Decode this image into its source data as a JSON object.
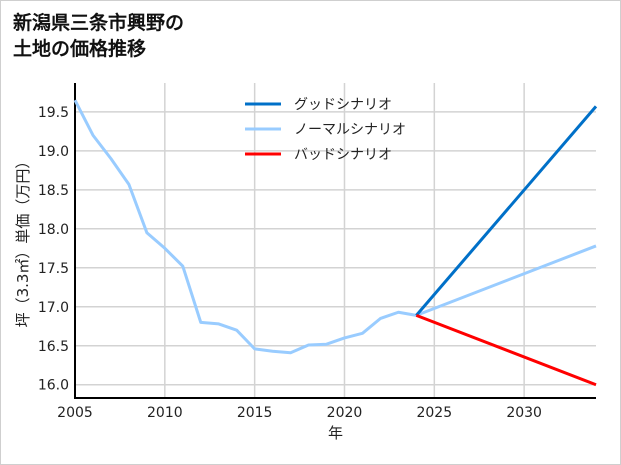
{
  "chart_data": {
    "type": "line",
    "title": [
      "新潟県三条市興野の",
      "土地の価格推移"
    ],
    "xlabel": "年",
    "ylabel": "坪（3.3㎡）単価（万円）",
    "xlim": [
      2005,
      2034
    ],
    "ylim": [
      15.83,
      19.87
    ],
    "xticks": [
      2005,
      2010,
      2015,
      2020,
      2025,
      2030
    ],
    "yticks": [
      16.0,
      16.5,
      17.0,
      17.5,
      18.0,
      18.5,
      19.0,
      19.5
    ],
    "grid": true,
    "legend_position": "top-center",
    "series": [
      {
        "name": "グッドシナリオ",
        "color": "#0070c8",
        "x": [
          2024,
          2034
        ],
        "y": [
          16.89,
          19.57
        ]
      },
      {
        "name": "ノーマルシナリオ",
        "color": "#99ccff",
        "x": [
          2005,
          2006,
          2007,
          2008,
          2009,
          2010,
          2011,
          2012,
          2013,
          2014,
          2015,
          2016,
          2017,
          2018,
          2019,
          2020,
          2021,
          2022,
          2023,
          2024,
          2034
        ],
        "y": [
          19.65,
          19.2,
          18.9,
          18.57,
          17.95,
          17.75,
          17.52,
          16.8,
          16.78,
          16.7,
          16.46,
          16.43,
          16.41,
          16.51,
          16.52,
          16.6,
          16.66,
          16.85,
          16.93,
          16.89,
          17.78
        ]
      },
      {
        "name": "バッドシナリオ",
        "color": "#ff0000",
        "x": [
          2024,
          2034
        ],
        "y": [
          16.89,
          16.0
        ]
      }
    ]
  }
}
